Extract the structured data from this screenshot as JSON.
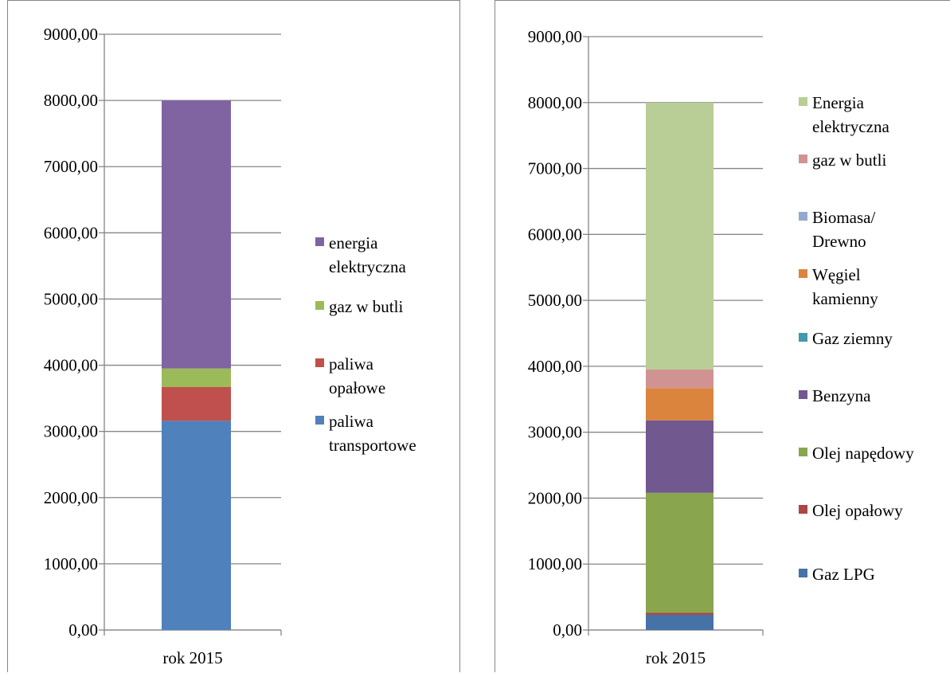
{
  "chart_data": [
    {
      "type": "stacked-bar",
      "categories": [
        "rok 2015"
      ],
      "ylim": [
        0,
        9000
      ],
      "yticks": [
        "0,00",
        "1000,00",
        "2000,00",
        "3000,00",
        "4000,00",
        "5000,00",
        "6000,00",
        "7000,00",
        "8000,00",
        "9000,00"
      ],
      "grid": true,
      "legend": "right",
      "series": [
        {
          "name": "paliwa transportowe",
          "legend_lines": [
            "paliwa",
            "transportowe"
          ],
          "values": [
            3160
          ],
          "color": "#4F81BD"
        },
        {
          "name": "paliwa opałowe",
          "legend_lines": [
            "paliwa",
            "opałowe"
          ],
          "values": [
            510
          ],
          "color": "#C0504D"
        },
        {
          "name": "gaz w butli",
          "legend_lines": [
            "gaz w butli"
          ],
          "values": [
            280
          ],
          "color": "#9BBB59"
        },
        {
          "name": "energia elektryczna",
          "legend_lines": [
            "energia",
            "elektryczna"
          ],
          "values": [
            4050
          ],
          "color": "#8064A2"
        }
      ]
    },
    {
      "type": "stacked-bar",
      "categories": [
        "rok 2015"
      ],
      "ylim": [
        0,
        9000
      ],
      "yticks": [
        "0,00",
        "1000,00",
        "2000,00",
        "3000,00",
        "4000,00",
        "5000,00",
        "6000,00",
        "7000,00",
        "8000,00",
        "9000,00"
      ],
      "grid": true,
      "legend": "right",
      "series": [
        {
          "name": "Gaz LPG",
          "legend_lines": [
            "Gaz LPG"
          ],
          "values": [
            230
          ],
          "color": "#4572A7"
        },
        {
          "name": "Olej opałowy",
          "legend_lines": [
            "Olej opałowy"
          ],
          "values": [
            30
          ],
          "color": "#AA4643"
        },
        {
          "name": "Olej napędowy",
          "legend_lines": [
            "Olej napędowy"
          ],
          "values": [
            1820
          ],
          "color": "#89A54E"
        },
        {
          "name": "Benzyna",
          "legend_lines": [
            "Benzyna"
          ],
          "values": [
            1100
          ],
          "color": "#71588F"
        },
        {
          "name": "Gaz ziemny",
          "legend_lines": [
            "Gaz ziemny"
          ],
          "values": [
            0
          ],
          "color": "#4198AF"
        },
        {
          "name": "Węgiel kamienny",
          "legend_lines": [
            "Węgiel",
            "kamienny"
          ],
          "values": [
            490
          ],
          "color": "#DB843D"
        },
        {
          "name": "Biomasa/ Drewno",
          "legend_lines": [
            "Biomasa/",
            "Drewno"
          ],
          "values": [
            0
          ],
          "color": "#93A9CF"
        },
        {
          "name": "gaz w butli",
          "legend_lines": [
            "gaz w butli"
          ],
          "values": [
            280
          ],
          "color": "#D19392"
        },
        {
          "name": "Energia elektryczna",
          "legend_lines": [
            "Energia",
            "elektryczna"
          ],
          "values": [
            4050
          ],
          "color": "#B9CD96"
        }
      ]
    }
  ]
}
